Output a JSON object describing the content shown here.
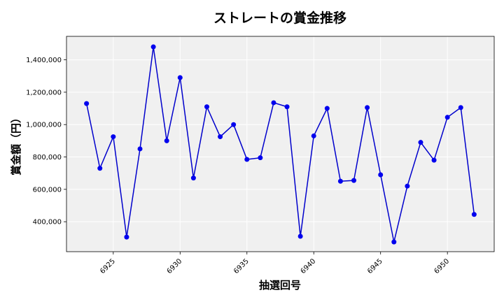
{
  "chart_data": {
    "type": "line",
    "title": "ストレートの賞金推移",
    "xlabel": "抽選回号",
    "ylabel": "賞金額（円）",
    "x": [
      6923,
      6924,
      6925,
      6926,
      6927,
      6928,
      6929,
      6930,
      6931,
      6932,
      6933,
      6934,
      6935,
      6936,
      6937,
      6938,
      6939,
      6940,
      6941,
      6942,
      6943,
      6944,
      6945,
      6946,
      6947,
      6948,
      6949,
      6950,
      6951,
      6952
    ],
    "values": [
      1130000,
      730000,
      925000,
      305000,
      850000,
      1480000,
      900000,
      1290000,
      670000,
      1110000,
      925000,
      1000000,
      785000,
      795000,
      1135000,
      1110000,
      310000,
      930000,
      1100000,
      650000,
      655000,
      1105000,
      690000,
      275000,
      620000,
      890000,
      780000,
      1045000,
      1105000,
      445000
    ],
    "xticks": [
      "6925",
      "6930",
      "6935",
      "6940",
      "6945",
      "6950"
    ],
    "yticks": [
      "400,000",
      "600,000",
      "800,000",
      "1,000,000",
      "1,200,000",
      "1,400,000"
    ],
    "xlim": [
      6921.5,
      6953.5
    ],
    "ylim": [
      215000,
      1545000
    ],
    "grid": true,
    "colors": {
      "line": "#0000cc",
      "marker": "#0000ee",
      "plot_bg": "#f0f0f0",
      "grid": "#ffffff"
    }
  }
}
